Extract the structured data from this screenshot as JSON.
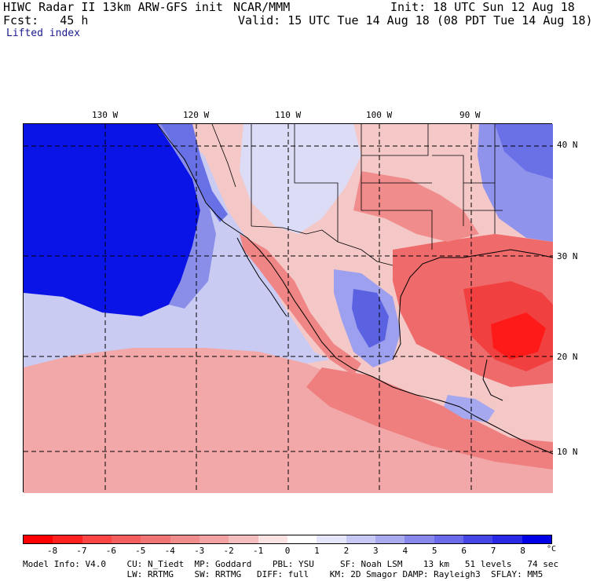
{
  "header": {
    "line1_left": "HIWC Radar II 13km ARW-GFS init",
    "line1_center": "NCAR/MMM",
    "line1_right": "Init: 18 UTC Sun 12 Aug 18",
    "line2_left": "Fcst:   45 h",
    "line2_right": "Valid: 15 UTC Tue 14 Aug 18 (08 PDT Tue 14 Aug 18)",
    "field_name": "Lifted index"
  },
  "map": {
    "longitude_labels": [
      "130 W",
      "120 W",
      "110 W",
      "100 W",
      "90 W"
    ],
    "latitude_labels": [
      "40 N",
      "30 N",
      "20 N",
      "10 N"
    ],
    "colors": {
      "strong_negative": "#ff1a1a",
      "negative": "#f06a6a",
      "weak_negative": "#f4b3b3",
      "neutral": "#fbe9e9",
      "weak_positive": "#c7c9f3",
      "positive": "#8c90ee",
      "strong_positive": "#0a14e6"
    }
  },
  "colorbar": {
    "labels": [
      "-8",
      "-7",
      "-6",
      "-5",
      "-4",
      "-3",
      "-2",
      "-1",
      "0",
      "1",
      "2",
      "3",
      "4",
      "5",
      "6",
      "7",
      "8"
    ],
    "unit": "°C",
    "colors": [
      "#ff0000",
      "#ff2020",
      "#fb4444",
      "#f45e5e",
      "#f07474",
      "#f08c8c",
      "#f2a2a2",
      "#f5bebe",
      "#fbe2e2",
      "#ffffff",
      "#e6e6fb",
      "#c8c8f5",
      "#aaaaef",
      "#8888ec",
      "#6a6aea",
      "#4646e6",
      "#2828e6",
      "#0000e6"
    ]
  },
  "model_info": {
    "line1": "Model Info: V4.0    CU: N_Tiedt  MP: Goddard    PBL: YSU     SF: Noah LSM    13 km   51 levels   74 sec",
    "line2": "                    LW: RRTMG    SW: RRTMG   DIFF: full    KM: 2D Smagor DAMP: Rayleigh3  SFLAY: MM5"
  }
}
